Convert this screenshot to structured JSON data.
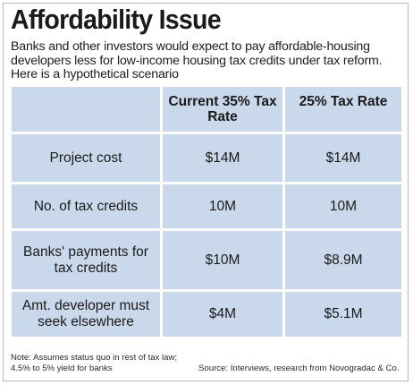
{
  "title": "Affordability Issue",
  "subtitle": "Banks and other investors would expect to pay affordable-housing developers less for low-income housing tax credits under tax reform. Here is a hypothetical scenario",
  "table": {
    "columns": [
      "Current 35% Tax Rate",
      "25% Tax Rate"
    ],
    "rows": [
      {
        "label": "Project cost",
        "current": "$14M",
        "reform": "$14M"
      },
      {
        "label": "No. of tax credits",
        "current": "10M",
        "reform": "10M"
      },
      {
        "label": "Banks' payments for tax credits",
        "current": "$10M",
        "reform": "$8.9M"
      },
      {
        "label": "Amt. developer must seek elsewhere",
        "current": "$4M",
        "reform": "$5.1M"
      }
    ]
  },
  "note": "Note: Assumes status quo in rest of tax law; 4.5% to 5% yield for banks",
  "source": "Source: Interviews, research from Novogradac & Co.",
  "colors": {
    "table_background": "#cad8ec",
    "divider": "#ffffff",
    "text": "#1a1a1a"
  }
}
